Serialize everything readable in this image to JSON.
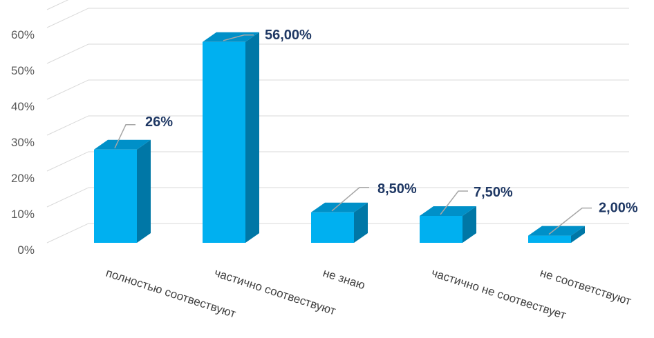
{
  "chart_data": {
    "type": "bar",
    "style": "3d-column",
    "categories": [
      "полностью соотвествуют",
      "частично соотвествуют",
      "не знаю",
      "частично не соотвествует",
      "не соответствуют"
    ],
    "values": [
      26,
      56,
      8.5,
      7.5,
      2
    ],
    "data_labels": [
      "26%",
      "56,00%",
      "8,50%",
      "7,50%",
      "2,00%"
    ],
    "yticks": [
      "0%",
      "10%",
      "20%",
      "30%",
      "40%",
      "50%",
      "60%"
    ],
    "ylim": [
      0,
      65
    ],
    "grid": true,
    "legend": "none",
    "colors": {
      "front": "#00b0f0",
      "side": "#0077a6",
      "top": "#0090c8",
      "grid": "#d9d9d9",
      "label": "#1f3864",
      "leader": "#a6a6a6"
    }
  }
}
